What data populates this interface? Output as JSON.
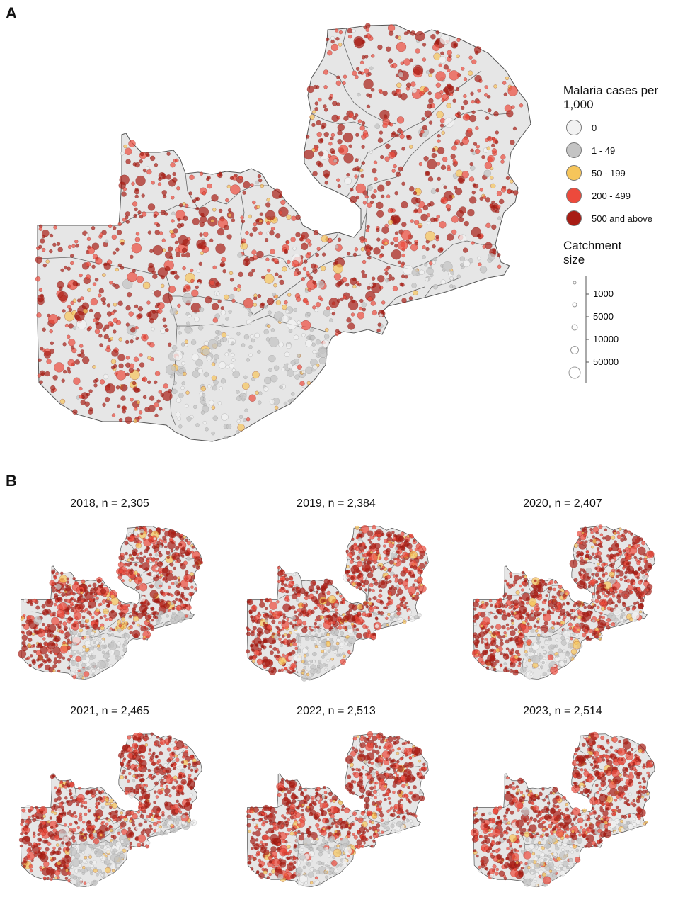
{
  "panel_a": {
    "label": "A",
    "legend": {
      "title": "Malaria cases per 1,000",
      "categories": [
        {
          "label": "0",
          "color": "#f2f2f2"
        },
        {
          "label": "1 - 49",
          "color": "#c4c4c4"
        },
        {
          "label": "50 - 199",
          "color": "#f6c55a"
        },
        {
          "label": "200 - 499",
          "color": "#ec4a3c"
        },
        {
          "label": "500 and above",
          "color": "#a81c14"
        }
      ]
    },
    "size_legend": {
      "title": "Catchment size",
      "values": [
        "1000",
        "5000",
        "10000",
        "50000"
      ]
    }
  },
  "panel_b": {
    "label": "B",
    "maps": [
      {
        "title": "2018, n = 2,305"
      },
      {
        "title": "2019, n = 2,384"
      },
      {
        "title": "2020, n = 2,407"
      },
      {
        "title": "2021, n = 2,465"
      },
      {
        "title": "2022, n = 2,513"
      },
      {
        "title": "2023, n = 2,514"
      }
    ]
  },
  "colors": {
    "land": "#e6e6e6",
    "border": "#555555",
    "background": "#ffffff"
  }
}
